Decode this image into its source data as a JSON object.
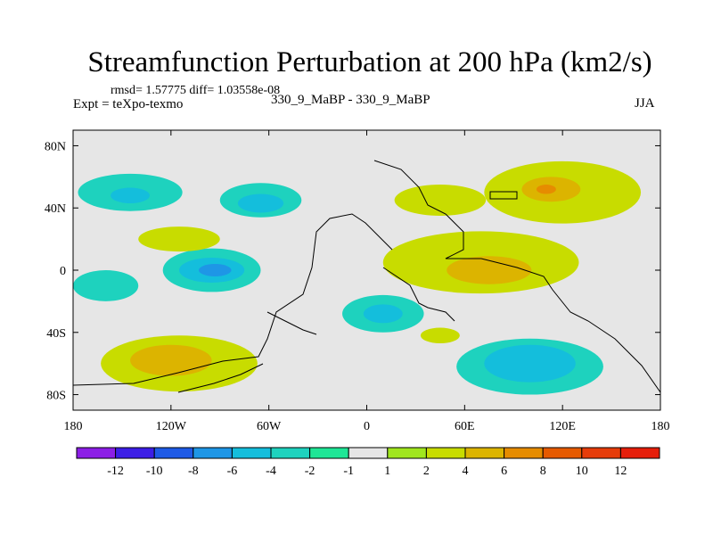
{
  "header": {
    "title": "Streamfunction Perturbation at 200 hPa (km2/s)",
    "stats": "rmsd= 1.57775 diff= 1.03558e-08",
    "experiment": "Expt = teXpo-texmo",
    "comparison": "330_9_MaBP - 330_9_MaBP",
    "season": "JJA"
  },
  "chart_data": {
    "type": "heatmap",
    "title": "Streamfunction Perturbation at 200 hPa (km2/s)",
    "xlabel": "",
    "ylabel": "",
    "xlim": [
      -180,
      180
    ],
    "ylim": [
      -90,
      90
    ],
    "x_ticks": [
      {
        "value": -180,
        "label": "180"
      },
      {
        "value": -120,
        "label": "120W"
      },
      {
        "value": -60,
        "label": "60W"
      },
      {
        "value": 0,
        "label": "0"
      },
      {
        "value": 60,
        "label": "60E"
      },
      {
        "value": 120,
        "label": "120E"
      },
      {
        "value": 180,
        "label": "180"
      }
    ],
    "y_ticks": [
      {
        "value": 80,
        "label": "80N"
      },
      {
        "value": 40,
        "label": "40N"
      },
      {
        "value": 0,
        "label": "0"
      },
      {
        "value": -40,
        "label": "40S"
      },
      {
        "value": -80,
        "label": "80S"
      }
    ],
    "colorbar": {
      "levels": [
        "-12",
        "-10",
        "-8",
        "-6",
        "-4",
        "-2",
        "-1",
        "1",
        "2",
        "4",
        "6",
        "8",
        "10",
        "12"
      ],
      "colors": [
        "#8c1ee6",
        "#3c1ee6",
        "#1e5ae6",
        "#1e96e6",
        "#14bedc",
        "#1ed2be",
        "#1ee696",
        "#e6e6e6",
        "#a0e61e",
        "#c8dc00",
        "#dcb400",
        "#e68c00",
        "#e65a00",
        "#e63c0a",
        "#e61e0a"
      ]
    },
    "regions": [
      {
        "id": "npac-neg",
        "level": "-2",
        "lon": -145,
        "lat": 50,
        "lon_r": 32,
        "lat_r": 12
      },
      {
        "id": "nam-neg",
        "level": "-2",
        "lon": -65,
        "lat": 45,
        "lon_r": 25,
        "lat_r": 11
      },
      {
        "id": "nam-core",
        "level": "-4",
        "lon": -65,
        "lat": 43,
        "lon_r": 14,
        "lat_r": 6
      },
      {
        "id": "npac-core",
        "level": "-4",
        "lon": -145,
        "lat": 48,
        "lon_r": 12,
        "lat_r": 5
      },
      {
        "id": "asia-pos",
        "level": "2",
        "lon": 120,
        "lat": 50,
        "lon_r": 48,
        "lat_r": 20
      },
      {
        "id": "asia-pos4",
        "level": "4",
        "lon": 113,
        "lat": 52,
        "lon_r": 18,
        "lat_r": 8
      },
      {
        "id": "asia-pos6",
        "level": "6",
        "lon": 110,
        "lat": 52,
        "lon_r": 6,
        "lat_r": 3
      },
      {
        "id": "medit-pos",
        "level": "2",
        "lon": 45,
        "lat": 45,
        "lon_r": 28,
        "lat_r": 10
      },
      {
        "id": "eq-pos",
        "level": "2",
        "lon": 70,
        "lat": 5,
        "lon_r": 60,
        "lat_r": 20
      },
      {
        "id": "eq-pos4",
        "level": "4",
        "lon": 75,
        "lat": 0,
        "lon_r": 26,
        "lat_r": 9
      },
      {
        "id": "cpac-neg",
        "level": "-2",
        "lon": -95,
        "lat": 0,
        "lon_r": 30,
        "lat_r": 14
      },
      {
        "id": "cpac-neg4",
        "level": "-4",
        "lon": -95,
        "lat": 0,
        "lon_r": 20,
        "lat_r": 8
      },
      {
        "id": "cpac-neg6",
        "level": "-6",
        "lon": -93,
        "lat": 0,
        "lon_r": 10,
        "lat_r": 4
      },
      {
        "id": "atl-neg",
        "level": "-2",
        "lon": 10,
        "lat": -28,
        "lon_r": 25,
        "lat_r": 12
      },
      {
        "id": "atl-neg4",
        "level": "-4",
        "lon": 10,
        "lat": -28,
        "lon_r": 12,
        "lat_r": 6
      },
      {
        "id": "sio-neg",
        "level": "-2",
        "lon": 100,
        "lat": -62,
        "lon_r": 45,
        "lat_r": 18
      },
      {
        "id": "sio-neg4",
        "level": "-4",
        "lon": 100,
        "lat": -60,
        "lon_r": 28,
        "lat_r": 12
      },
      {
        "id": "spac-pos",
        "level": "2",
        "lon": -115,
        "lat": -60,
        "lon_r": 48,
        "lat_r": 18
      },
      {
        "id": "spac-pos4",
        "level": "4",
        "lon": -120,
        "lat": -58,
        "lon_r": 25,
        "lat_r": 10
      },
      {
        "id": "sio-pos",
        "level": "2",
        "lon": 45,
        "lat": -42,
        "lon_r": 12,
        "lat_r": 5
      },
      {
        "id": "wpac-pos",
        "level": "2",
        "lon": -115,
        "lat": 20,
        "lon_r": 25,
        "lat_r": 8
      },
      {
        "id": "spac-neg",
        "level": "-2",
        "lon": -160,
        "lat": -10,
        "lon_r": 20,
        "lat_r": 10
      }
    ]
  }
}
